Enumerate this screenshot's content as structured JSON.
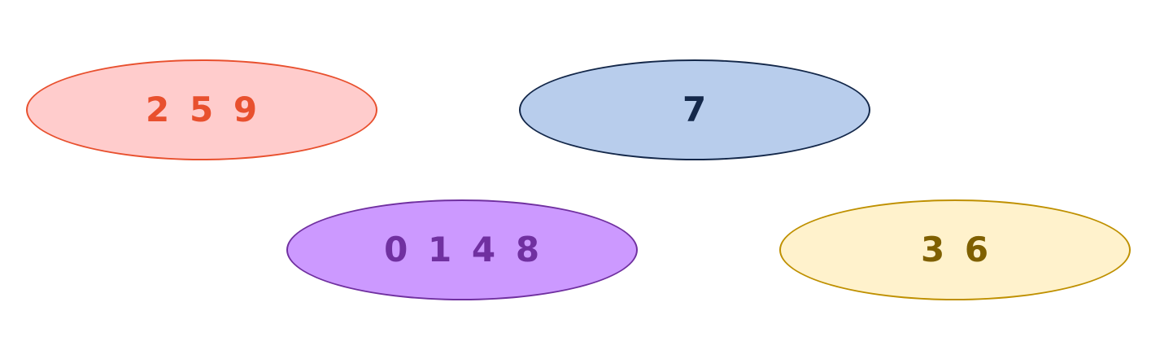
{
  "groups": [
    {
      "label": "2 5 9",
      "fill": "#ffcccc",
      "stroke": "#e8502e",
      "text_color": "#e8502e"
    },
    {
      "label": "7",
      "fill": "#b8cdec",
      "stroke": "#14284a",
      "text_color": "#14284a"
    },
    {
      "label": "0 1 4 8",
      "fill": "#cc99ff",
      "stroke": "#7030a0",
      "text_color": "#7030a0"
    },
    {
      "label": "3 6",
      "fill": "#fff2cc",
      "stroke": "#bf9000",
      "text_color": "#7f6000"
    }
  ]
}
